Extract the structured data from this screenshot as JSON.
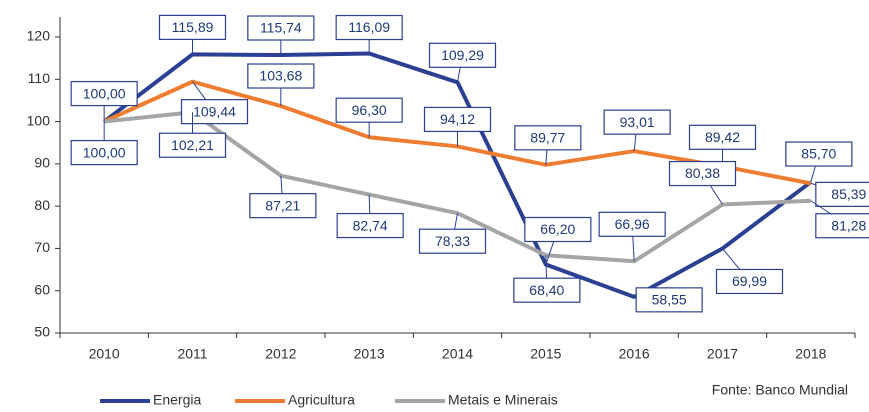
{
  "chart_data": {
    "type": "line",
    "categories": [
      "2010",
      "2011",
      "2012",
      "2013",
      "2014",
      "2015",
      "2016",
      "2017",
      "2018"
    ],
    "series": [
      {
        "name": "Energia",
        "color": "#2b3f93",
        "values": [
          100.0,
          115.89,
          115.74,
          116.09,
          109.29,
          66.2,
          58.55,
          69.99,
          85.7
        ],
        "value_labels": [
          "100,00",
          "115,89",
          "115,74",
          "116,09",
          "109,29",
          "66,20",
          "58,55",
          "69,99",
          "85,70"
        ]
      },
      {
        "name": "Agricultura",
        "color": "#ee7d31",
        "values": [
          100.0,
          109.44,
          103.68,
          96.3,
          94.12,
          89.77,
          93.01,
          89.42,
          85.39
        ],
        "value_labels": [
          null,
          "109,44",
          "103,68",
          "96,30",
          "94,12",
          "89,77",
          "93,01",
          "89,42",
          "85,39"
        ]
      },
      {
        "name": "Metais e Minerais",
        "color": "#a5a5a5",
        "values": [
          100.0,
          102.21,
          87.21,
          82.74,
          78.33,
          68.4,
          66.96,
          80.38,
          81.28
        ],
        "value_labels": [
          "100,00",
          "102,21",
          "87,21",
          "82,74",
          "78,33",
          "68,40",
          "66,96",
          "80,38",
          "81,28"
        ]
      }
    ],
    "ylim": [
      50,
      120
    ],
    "yticks": [
      50,
      60,
      70,
      80,
      90,
      100,
      110,
      120
    ],
    "source": "Fonte: Banco Mundial"
  }
}
